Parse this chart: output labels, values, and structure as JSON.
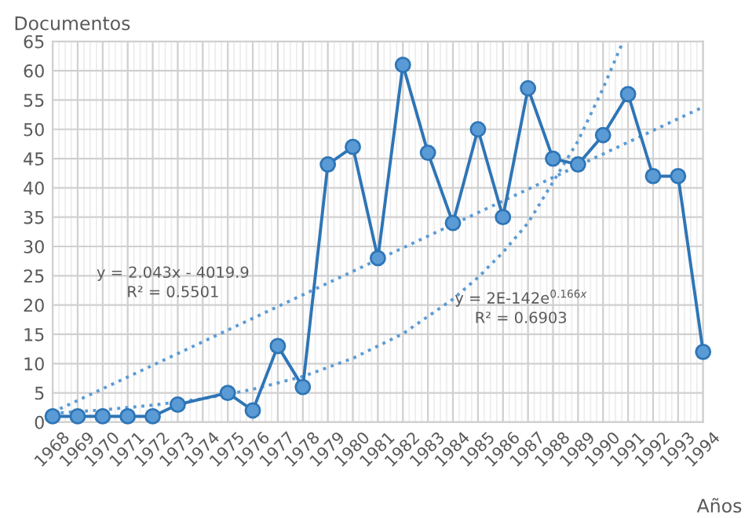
{
  "chart_data": {
    "type": "line",
    "xlabel": "Años",
    "ylabel": "Documentos",
    "series": [
      {
        "color": "#2e75b6",
        "marker": "circle",
        "line_style": "solid",
        "x": [
          1968,
          1969,
          1970,
          1971,
          1972,
          1973,
          1975,
          1976,
          1977,
          1978,
          1979,
          1980,
          1981,
          1982,
          1983,
          1984,
          1985,
          1986,
          1987,
          1988,
          1989,
          1990,
          1991,
          1992,
          1993,
          1994
        ],
        "values": [
          1,
          1,
          1,
          1,
          1,
          3,
          5,
          2,
          13,
          6,
          44,
          47,
          28,
          61,
          46,
          34,
          50,
          35,
          57,
          45,
          44,
          49,
          56,
          42,
          42,
          12
        ]
      },
      {
        "color": "#5b9bd5",
        "marker": "none",
        "line_style": "dotted",
        "x": [
          1968,
          1994
        ],
        "values": [
          1.7,
          53.8
        ]
      },
      {
        "color": "#5b9bd5",
        "marker": "none",
        "line_style": "dotted",
        "x": [
          1968,
          1970,
          1972,
          1974,
          1976,
          1978,
          1980,
          1982,
          1984,
          1985,
          1986,
          1987,
          1988,
          1989,
          1990,
          1990.8
        ],
        "values": [
          1.5,
          2.1,
          2.9,
          4.0,
          5.6,
          7.8,
          10.9,
          15.1,
          21,
          24.7,
          29,
          34,
          41,
          48,
          57,
          65
        ]
      }
    ],
    "xlim": [
      1968,
      1994
    ],
    "xticks": [
      1968,
      1969,
      1970,
      1971,
      1972,
      1973,
      1974,
      1975,
      1976,
      1977,
      1978,
      1979,
      1980,
      1981,
      1982,
      1983,
      1984,
      1985,
      1986,
      1987,
      1988,
      1989,
      1990,
      1991,
      1992,
      1993,
      1994
    ],
    "ylim": [
      0,
      65
    ],
    "yticks": [
      0,
      5,
      10,
      15,
      20,
      25,
      30,
      35,
      40,
      45,
      50,
      55,
      60,
      65
    ],
    "grid": true,
    "legend": false,
    "annotations": [
      "y = 2.043x - 4019.9\nR² = 0.5501",
      "y = 2E-142e$^{0.166x}$\nR² = 0.6903"
    ]
  }
}
